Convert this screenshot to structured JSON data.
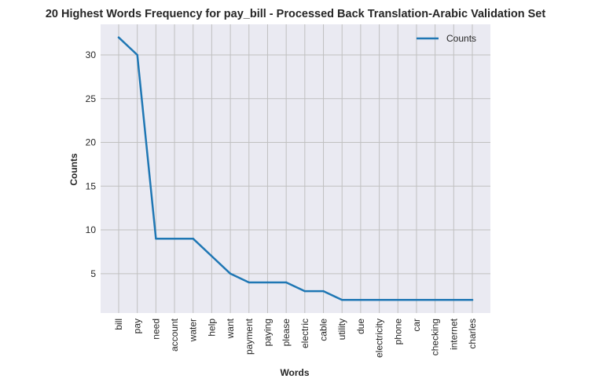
{
  "chart_data": {
    "type": "line",
    "title": "20 Highest Words Frequency for pay_bill - Processed Back Translation-Arabic Validation Set",
    "xlabel": "Words",
    "ylabel": "Counts",
    "categories": [
      "bill",
      "pay",
      "need",
      "account",
      "water",
      "help",
      "want",
      "payment",
      "paying",
      "please",
      "electric",
      "cable",
      "utility",
      "due",
      "electricity",
      "phone",
      "car",
      "checking",
      "internet",
      "charles"
    ],
    "series": [
      {
        "name": "Counts",
        "values": [
          32,
          30,
          9,
          9,
          9,
          7,
          5,
          4,
          4,
          4,
          3,
          3,
          2,
          2,
          2,
          2,
          2,
          2,
          2,
          2
        ],
        "color": "#1f77b4"
      }
    ],
    "yticks": [
      5,
      10,
      15,
      20,
      25,
      30
    ],
    "ylim": [
      0.5,
      33.5
    ],
    "grid": true,
    "legend_position": "top-right",
    "background": "#eaeaf2"
  }
}
